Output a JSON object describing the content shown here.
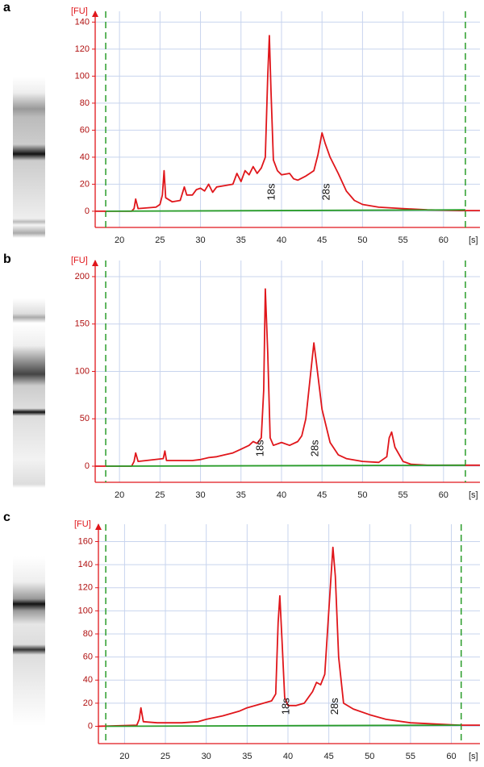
{
  "chart_data": [
    {
      "type": "line",
      "panel_label": "a",
      "y_label": "[FU]",
      "x_label": "[s]",
      "xlim": [
        17,
        64.5
      ],
      "ylim": [
        -12,
        148
      ],
      "xticks": [
        20,
        25,
        30,
        35,
        40,
        45,
        50,
        55,
        60
      ],
      "yticks": [
        0,
        20,
        40,
        60,
        80,
        100,
        120,
        140
      ],
      "grid": true,
      "markers": [
        18.3,
        62.7
      ],
      "marker_color": "#2a9d2a",
      "series": [
        {
          "color": "#e0161b",
          "x": [
            17,
            21.5,
            21.8,
            22,
            22.3,
            24.5,
            25,
            25.3,
            25.5,
            25.7,
            26.5,
            27.5,
            28,
            28.3,
            29,
            29.5,
            30,
            30.5,
            31,
            31.5,
            32,
            33,
            34,
            34.5,
            35,
            35.5,
            36,
            36.5,
            37,
            37.5,
            38,
            38.3,
            38.5,
            38.7,
            39,
            39.5,
            40,
            41,
            41.5,
            42,
            43,
            44,
            44.5,
            45,
            45.4,
            46,
            47,
            48,
            49,
            50,
            52,
            55,
            58,
            62,
            64.5
          ],
          "values": [
            0,
            0,
            2,
            9,
            2,
            3,
            5,
            12,
            30,
            10,
            7,
            8,
            18,
            12,
            12,
            16,
            17,
            15,
            20,
            14,
            18,
            19,
            20,
            28,
            22,
            30,
            27,
            33,
            28,
            32,
            40,
            100,
            130,
            90,
            38,
            30,
            27,
            28,
            24,
            23,
            26,
            30,
            42,
            58,
            50,
            40,
            28,
            15,
            8,
            5,
            3,
            2,
            1,
            0.5,
            0.5
          ]
        },
        {
          "color": "#2a9d2a",
          "x": [
            18.3,
            62.7
          ],
          "values": [
            0,
            1
          ]
        }
      ],
      "annotations": [
        {
          "text": "18s",
          "x": 38.8,
          "y": 8
        },
        {
          "text": "28s",
          "x": 45.6,
          "y": 8
        }
      ]
    },
    {
      "type": "line",
      "panel_label": "b",
      "y_label": "[FU]",
      "x_label": "[s]",
      "xlim": [
        17,
        64.5
      ],
      "ylim": [
        -17,
        217
      ],
      "xticks": [
        20,
        25,
        30,
        35,
        40,
        45,
        50,
        55,
        60
      ],
      "yticks": [
        0,
        50,
        100,
        150,
        200
      ],
      "grid": true,
      "markers": [
        18.3,
        62.7
      ],
      "marker_color": "#2a9d2a",
      "series": [
        {
          "color": "#e0161b",
          "x": [
            17,
            21.5,
            21.8,
            22,
            22.3,
            25.4,
            25.6,
            25.8,
            28,
            29,
            30,
            31,
            32,
            33,
            34,
            35,
            36,
            36.5,
            37,
            37.5,
            37.8,
            38,
            38.3,
            38.6,
            39,
            40,
            41,
            42,
            42.5,
            43,
            43.5,
            44,
            44.3,
            45,
            46,
            47,
            48,
            50,
            52,
            53,
            53.3,
            53.6,
            54,
            55,
            56,
            58,
            60,
            64.5
          ],
          "values": [
            0,
            0,
            5,
            14,
            5,
            8,
            16,
            6,
            6,
            6,
            7,
            9,
            10,
            12,
            14,
            18,
            22,
            26,
            24,
            30,
            80,
            187,
            120,
            30,
            22,
            25,
            22,
            26,
            32,
            50,
            90,
            130,
            110,
            60,
            25,
            12,
            8,
            5,
            4,
            10,
            30,
            36,
            20,
            5,
            2,
            1,
            1,
            1
          ]
        },
        {
          "color": "#2a9d2a",
          "x": [
            18.3,
            62.7
          ],
          "values": [
            0,
            1
          ]
        }
      ],
      "annotations": [
        {
          "text": "18s",
          "x": 37.4,
          "y": 10
        },
        {
          "text": "28s",
          "x": 44.2,
          "y": 10
        }
      ]
    },
    {
      "type": "line",
      "panel_label": "c",
      "y_label": "[FU]",
      "x_label": "[s]",
      "xlim": [
        16.8,
        63.5
      ],
      "ylim": [
        -15,
        175
      ],
      "xticks": [
        20,
        25,
        30,
        35,
        40,
        45,
        50,
        55,
        60
      ],
      "yticks": [
        0,
        20,
        40,
        60,
        80,
        100,
        120,
        140,
        160
      ],
      "grid": true,
      "markers": [
        17.7,
        61.2
      ],
      "marker_color": "#2a9d2a",
      "series": [
        {
          "color": "#e0161b",
          "x": [
            16.8,
            21.5,
            21.8,
            22,
            22.3,
            24,
            27,
            29,
            30,
            32,
            34,
            35,
            36,
            37,
            38,
            38.5,
            38.8,
            39,
            39.3,
            39.6,
            40,
            41,
            42,
            43,
            43.5,
            44,
            44.5,
            45,
            45.5,
            45.8,
            46.2,
            46.8,
            48,
            50,
            52,
            55,
            58,
            61,
            63.5
          ],
          "values": [
            0,
            1,
            6,
            16,
            4,
            3,
            3,
            4,
            6,
            9,
            13,
            16,
            18,
            20,
            22,
            28,
            90,
            113,
            70,
            25,
            18,
            18,
            20,
            30,
            38,
            36,
            45,
            100,
            155,
            130,
            60,
            20,
            15,
            10,
            6,
            3,
            2,
            1,
            1
          ]
        },
        {
          "color": "#2a9d2a",
          "x": [
            17.7,
            61.2
          ],
          "values": [
            0,
            1
          ]
        }
      ],
      "annotations": [
        {
          "text": "18s",
          "x": 39.8,
          "y": 10
        },
        {
          "text": "28s",
          "x": 45.8,
          "y": 10
        }
      ]
    }
  ]
}
